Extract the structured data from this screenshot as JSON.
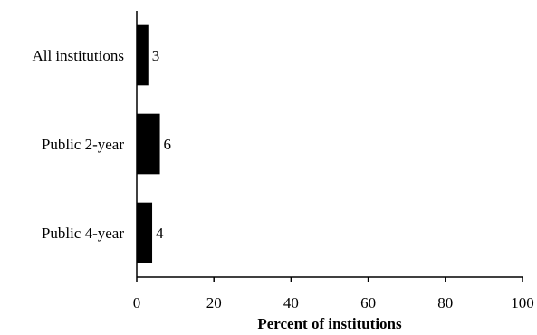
{
  "chart_data": {
    "type": "bar",
    "orientation": "horizontal",
    "categories": [
      "All institutions",
      "Public 2-year",
      "Public 4-year"
    ],
    "values": [
      3,
      6,
      4
    ],
    "data_labels": [
      "3",
      "6",
      "4"
    ],
    "xlabel": "Percent of institutions",
    "ylabel": "",
    "xlim": [
      0,
      100
    ],
    "xticks": [
      "0",
      "20",
      "40",
      "60",
      "80",
      "100"
    ],
    "grid": false,
    "legend": "none",
    "bar_color": "#000000"
  }
}
